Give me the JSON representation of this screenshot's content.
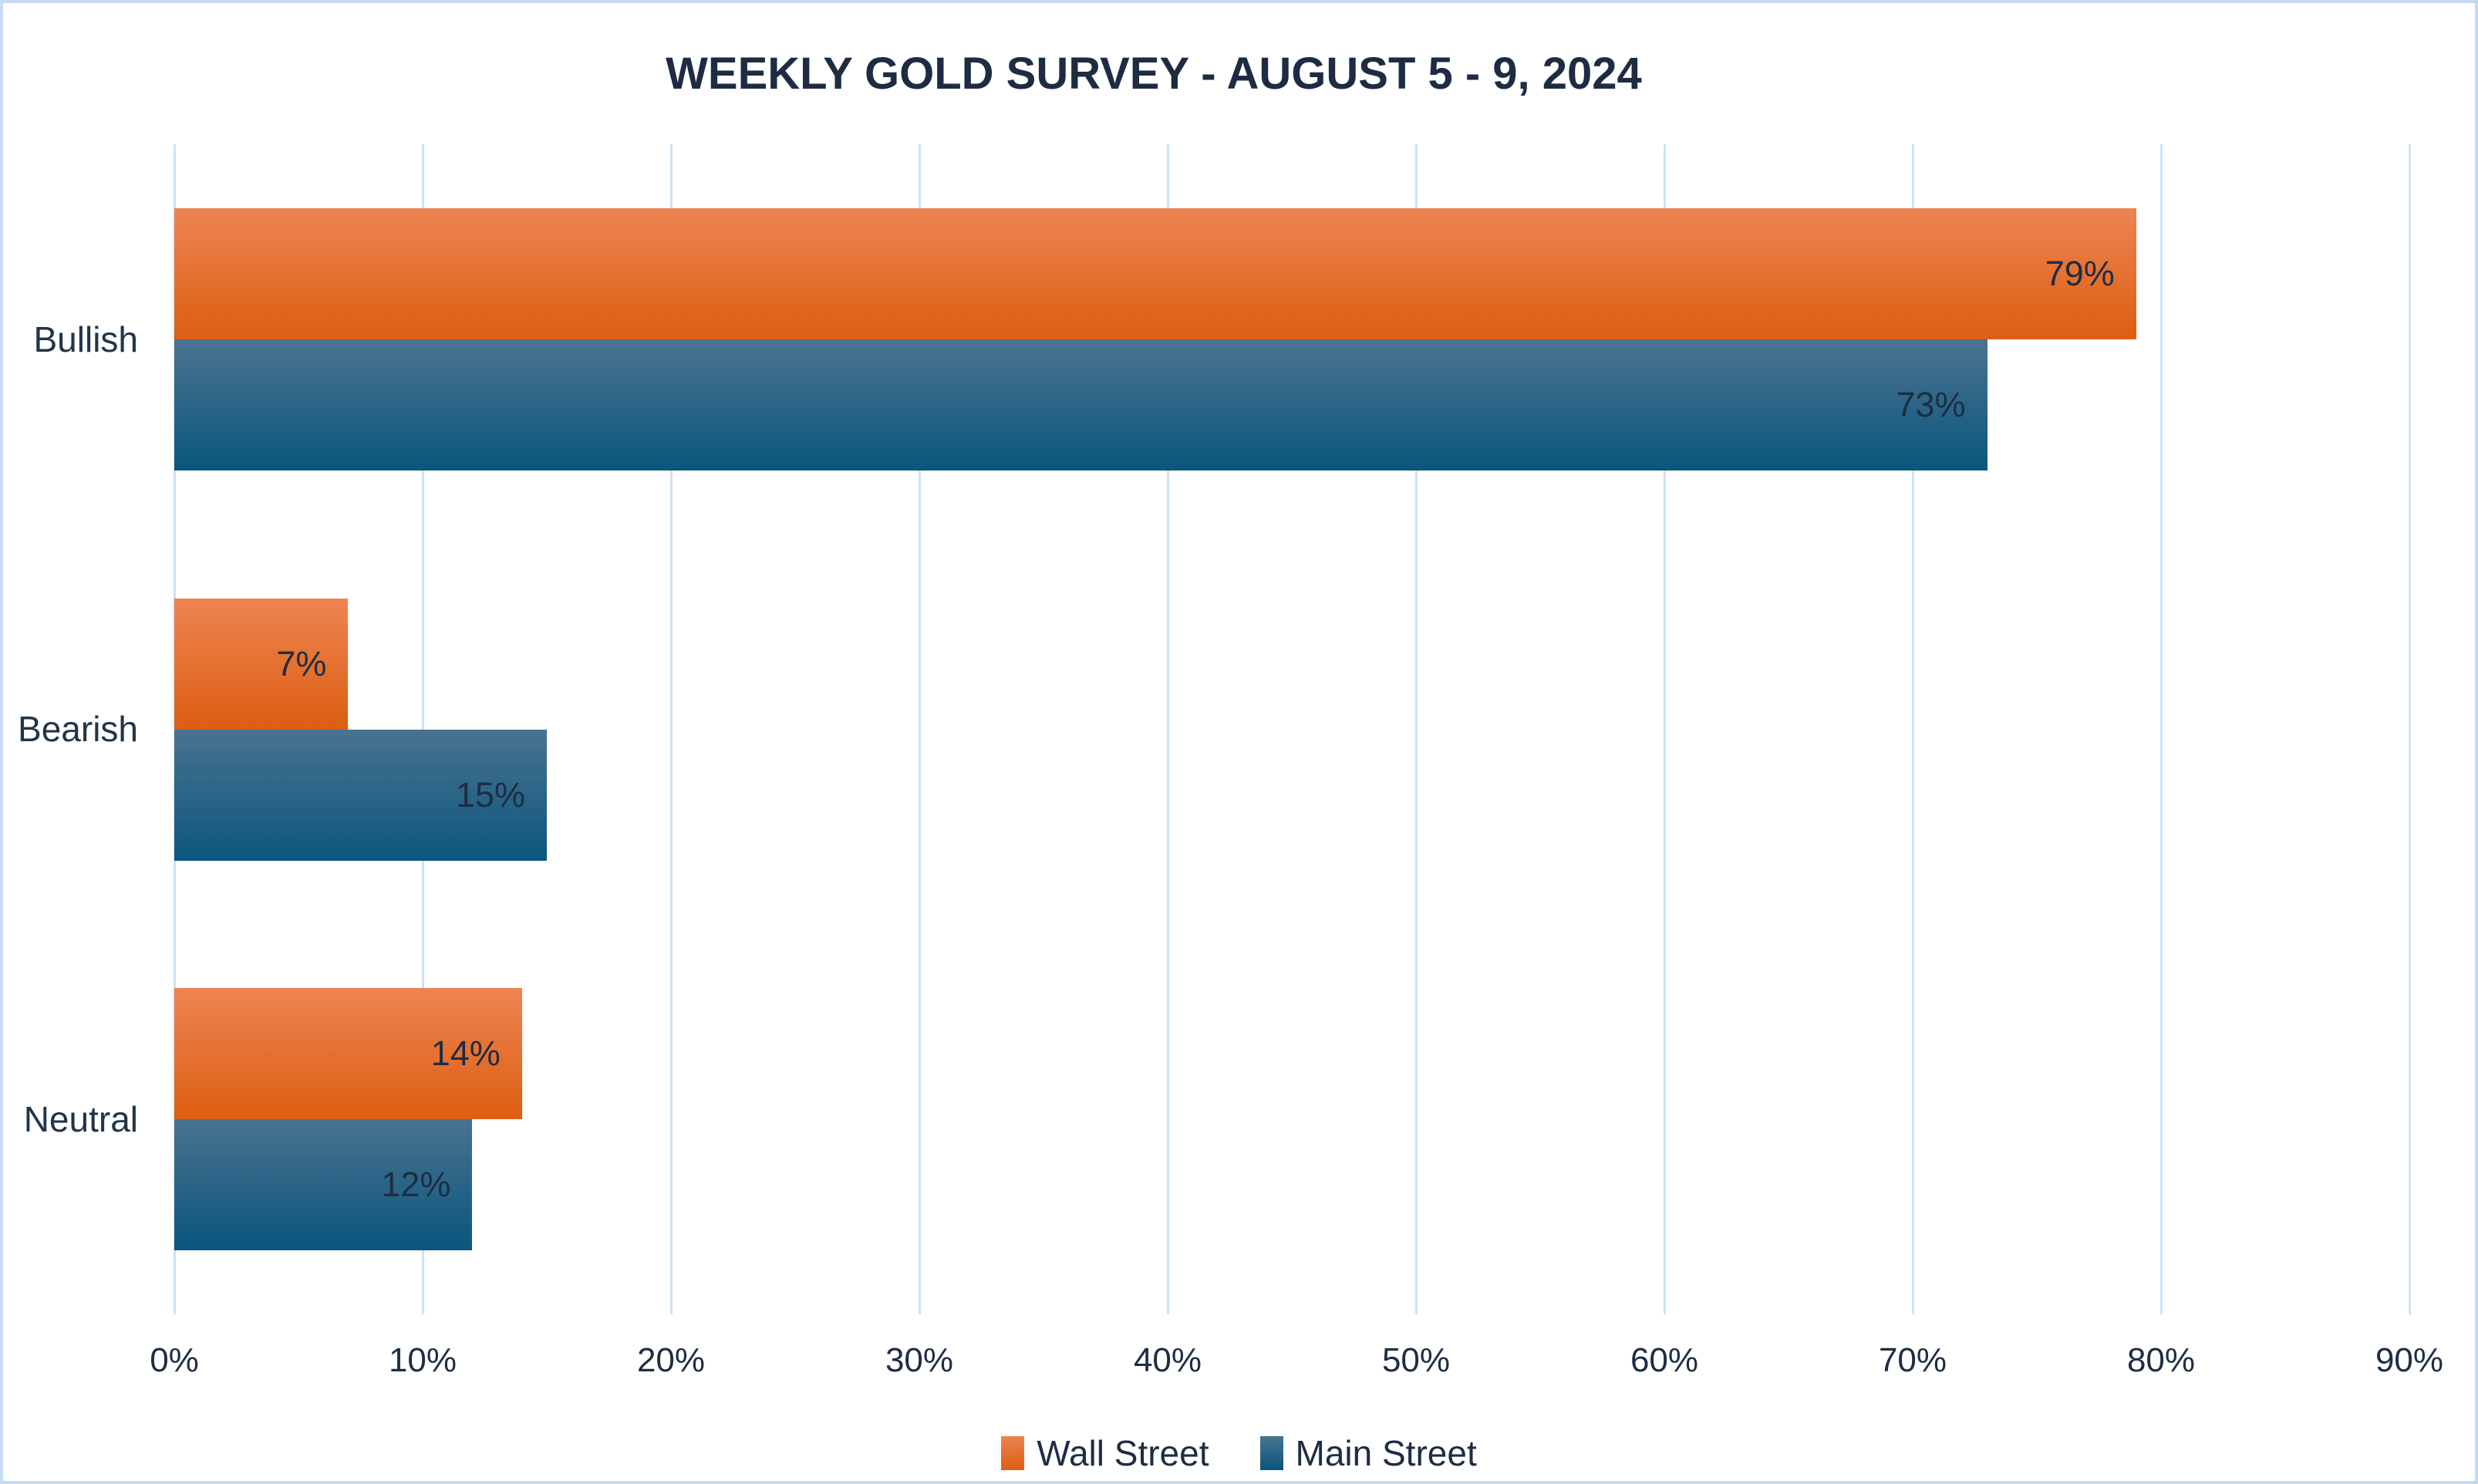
{
  "title": "WEEKLY GOLD SURVEY - AUGUST 5 - 9, 2024",
  "colors": {
    "text": "#1e2d43",
    "gridline": "#cfe2f4",
    "frame_border": "#c6dbf1",
    "background": "#ffffff"
  },
  "chart_data": {
    "type": "bar",
    "orientation": "horizontal",
    "title": "WEEKLY GOLD SURVEY - AUGUST 5 - 9, 2024",
    "categories": [
      "Bullish",
      "Bearish",
      "Neutral"
    ],
    "series": [
      {
        "name": "Wall Street",
        "values": [
          79,
          7,
          14
        ],
        "labels": [
          "79%",
          "7%",
          "14%"
        ],
        "color_top": "#ee8452",
        "color_bottom": "#dc5e11"
      },
      {
        "name": "Main Street",
        "values": [
          73,
          15,
          12
        ],
        "labels": [
          "73%",
          "15%",
          "12%"
        ],
        "color_top": "#4a7390",
        "color_bottom": "#0a567d"
      }
    ],
    "xlabel": "",
    "ylabel": "",
    "xlim": [
      0,
      90
    ],
    "x_tick_values": [
      0,
      10,
      20,
      30,
      40,
      50,
      60,
      70,
      80,
      90
    ],
    "x_tick_labels": [
      "0%",
      "10%",
      "20%",
      "30%",
      "40%",
      "50%",
      "60%",
      "70%",
      "80%",
      "90%"
    ],
    "grid": "vertical",
    "legend_position": "bottom"
  },
  "legend": {
    "items": [
      {
        "label": "Wall Street"
      },
      {
        "label": "Main Street"
      }
    ]
  }
}
